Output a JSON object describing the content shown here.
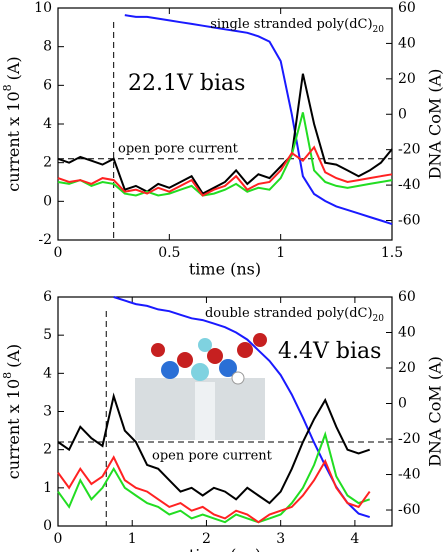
{
  "chart_data": [
    {
      "type": "line",
      "annotation": {
        "text": "single stranded poly(dC)",
        "subscript": "20"
      },
      "bias_label": "22.1V bias",
      "open_pore_label": "open pore current",
      "open_pore_level": 2.2,
      "event_start": 0.25,
      "xlabel": "time (ns)",
      "ylabel": {
        "text": "current x 10",
        "superscript": "8",
        "unit": "(A)"
      },
      "y2label": "DNA CoM (A)",
      "xlim": [
        0,
        1.5
      ],
      "xticks": [
        0,
        0.5,
        1,
        1.5
      ],
      "ylim": [
        -2,
        10
      ],
      "yticks": [
        -2,
        0,
        2,
        4,
        6,
        8,
        10
      ],
      "y2lim": [
        -71,
        60
      ],
      "y2ticks": [
        -60,
        -40,
        -20,
        0,
        20,
        40,
        60
      ],
      "x": [
        0,
        0.05,
        0.1,
        0.15,
        0.2,
        0.25,
        0.3,
        0.35,
        0.4,
        0.45,
        0.5,
        0.55,
        0.6,
        0.65,
        0.7,
        0.75,
        0.8,
        0.85,
        0.9,
        0.95,
        1.0,
        1.05,
        1.1,
        1.15,
        1.2,
        1.25,
        1.3,
        1.35,
        1.4,
        1.45,
        1.5
      ],
      "series": [
        {
          "color": "#1a1aff",
          "axis": "y2",
          "values": [
            null,
            null,
            null,
            null,
            null,
            null,
            56,
            55,
            55,
            54,
            53,
            52,
            51,
            50,
            49,
            48,
            47,
            46,
            44,
            41,
            30,
            0,
            -35,
            -45,
            -49,
            -52,
            -54,
            -56,
            -58,
            -60,
            -62
          ]
        },
        {
          "color": "#000000",
          "values": [
            2.2,
            2.0,
            2.3,
            2.1,
            1.9,
            2.2,
            0.6,
            0.8,
            0.5,
            0.9,
            0.7,
            1.0,
            1.3,
            0.4,
            0.7,
            1.0,
            1.6,
            0.9,
            1.4,
            1.2,
            1.8,
            2.4,
            6.6,
            4.0,
            2.0,
            1.9,
            1.6,
            1.3,
            1.6,
            2.0,
            2.7
          ]
        },
        {
          "color": "#22dd22",
          "values": [
            1.0,
            0.9,
            1.1,
            0.8,
            1.0,
            0.9,
            0.4,
            0.3,
            0.5,
            0.3,
            0.4,
            0.6,
            0.8,
            0.3,
            0.4,
            0.6,
            0.9,
            0.5,
            0.7,
            0.6,
            1.2,
            2.4,
            4.6,
            1.6,
            1.0,
            0.8,
            0.7,
            0.8,
            0.9,
            1.0,
            1.1
          ]
        },
        {
          "color": "#ff2222",
          "values": [
            1.2,
            1.0,
            1.1,
            0.9,
            1.2,
            1.1,
            0.5,
            0.6,
            0.4,
            0.7,
            0.5,
            0.8,
            1.1,
            0.3,
            0.6,
            0.8,
            1.3,
            0.6,
            0.9,
            1.0,
            1.6,
            2.5,
            2.1,
            2.8,
            1.5,
            1.2,
            1.0,
            1.1,
            1.2,
            1.3,
            1.4
          ]
        }
      ]
    },
    {
      "type": "line",
      "annotation": {
        "text": "double stranded poly(dC)",
        "subscript": "20"
      },
      "bias_label": "4.4V bias",
      "open_pore_label": "open pore current",
      "open_pore_level": 2.2,
      "event_start": 0.65,
      "xlabel": "time (ns)",
      "ylabel": {
        "text": "current x 10",
        "superscript": "8",
        "unit": "(A)"
      },
      "y2label": "DNA CoM (A)",
      "xlim": [
        0,
        4.5
      ],
      "xticks": [
        0,
        1,
        2,
        3,
        4
      ],
      "ylim": [
        0,
        6
      ],
      "yticks": [
        0,
        1,
        2,
        3,
        4,
        5,
        6
      ],
      "y2lim": [
        -69,
        60
      ],
      "y2ticks": [
        -60,
        -40,
        -20,
        0,
        20,
        40,
        60
      ],
      "x": [
        0,
        0.15,
        0.3,
        0.45,
        0.6,
        0.75,
        0.9,
        1.05,
        1.2,
        1.35,
        1.5,
        1.65,
        1.8,
        1.95,
        2.1,
        2.25,
        2.4,
        2.55,
        2.7,
        2.85,
        3.0,
        3.15,
        3.3,
        3.45,
        3.6,
        3.75,
        3.9,
        4.05,
        4.2
      ],
      "series": [
        {
          "color": "#1a1aff",
          "axis": "y2",
          "values": [
            null,
            null,
            null,
            null,
            null,
            60,
            58,
            56,
            55,
            53,
            52,
            50,
            48,
            47,
            45,
            43,
            40,
            36,
            30,
            24,
            16,
            5,
            -8,
            -22,
            -35,
            -47,
            -56,
            -62,
            -64
          ]
        },
        {
          "color": "#000000",
          "values": [
            2.2,
            2.0,
            2.6,
            2.3,
            2.1,
            3.4,
            2.5,
            2.2,
            1.6,
            1.5,
            1.2,
            0.9,
            1.0,
            0.8,
            1.0,
            0.9,
            0.7,
            1.0,
            0.8,
            0.6,
            0.9,
            1.5,
            2.2,
            2.8,
            3.3,
            2.6,
            2.0,
            1.9,
            2.0
          ]
        },
        {
          "color": "#22dd22",
          "values": [
            0.9,
            0.5,
            1.2,
            0.7,
            1.0,
            1.5,
            1.0,
            0.8,
            0.6,
            0.5,
            0.3,
            0.4,
            0.2,
            0.3,
            0.2,
            0.1,
            0.3,
            0.2,
            0.1,
            0.2,
            0.3,
            0.6,
            1.0,
            1.6,
            2.4,
            1.3,
            0.8,
            0.6,
            0.7
          ]
        },
        {
          "color": "#ff2222",
          "values": [
            1.4,
            1.0,
            1.5,
            1.1,
            1.3,
            1.8,
            1.2,
            1.0,
            0.9,
            0.7,
            0.5,
            0.6,
            0.4,
            0.5,
            0.3,
            0.2,
            0.4,
            0.3,
            0.1,
            0.3,
            0.4,
            0.5,
            0.8,
            1.2,
            1.7,
            1.0,
            0.6,
            0.5,
            0.9
          ]
        }
      ]
    }
  ]
}
